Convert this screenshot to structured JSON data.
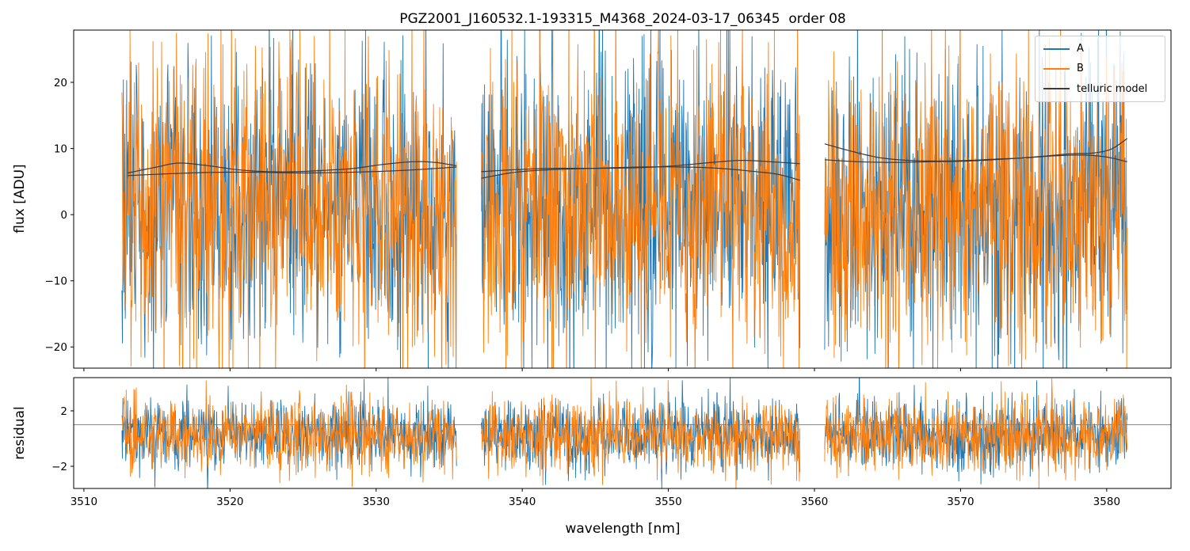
{
  "chart_data": [
    {
      "type": "line",
      "title": "PGZ2001_J160532.1-193315_M4368_2024-03-17_06345  order 08",
      "ylabel": "flux [ADU]",
      "xlim": [
        3509.3,
        3584.4
      ],
      "ylim": [
        -23.2,
        27.9
      ],
      "yticks": [
        -20,
        -10,
        0,
        10,
        20
      ],
      "xticks": [
        3510,
        3520,
        3530,
        3540,
        3550,
        3560,
        3570,
        3580
      ],
      "grid": false,
      "segments_nm": [
        [
          3512.6,
          3535.5
        ],
        [
          3537.2,
          3559.0
        ],
        [
          3560.7,
          3581.4
        ]
      ],
      "series": [
        {
          "name": "A",
          "role": "noise",
          "color": "#1f77b4",
          "mean": 2.0,
          "sigma": 11.0,
          "points_per_segment": 700
        },
        {
          "name": "B",
          "role": "noise",
          "color": "#ff7f0e",
          "mean": 1.5,
          "sigma": 11.6,
          "points_per_segment": 700
        },
        {
          "name": "telluric model",
          "role": "model",
          "color": "#3a3a3a",
          "curves": [
            {
              "segments": [
                [
                  [
                    3513.0,
                    6.3
                  ],
                  [
                    3515.0,
                    7.2
                  ],
                  [
                    3516.5,
                    7.8
                  ],
                  [
                    3518.5,
                    7.4
                  ],
                  [
                    3520.5,
                    6.8
                  ],
                  [
                    3522.5,
                    6.5
                  ],
                  [
                    3524.5,
                    6.5
                  ],
                  [
                    3526.5,
                    6.7
                  ],
                  [
                    3528.5,
                    7.0
                  ],
                  [
                    3530.5,
                    7.6
                  ],
                  [
                    3532.5,
                    8.0
                  ],
                  [
                    3534.0,
                    7.9
                  ],
                  [
                    3535.5,
                    7.4
                  ]
                ],
                [
                  [
                    3537.2,
                    6.5
                  ],
                  [
                    3539.5,
                    6.8
                  ],
                  [
                    3542.0,
                    7.0
                  ],
                  [
                    3545.0,
                    7.0
                  ],
                  [
                    3548.0,
                    7.1
                  ],
                  [
                    3550.5,
                    7.4
                  ],
                  [
                    3553.0,
                    7.9
                  ],
                  [
                    3555.0,
                    8.2
                  ],
                  [
                    3557.0,
                    8.0
                  ],
                  [
                    3559.0,
                    7.7
                  ]
                ],
                [
                  [
                    3560.7,
                    10.7
                  ],
                  [
                    3562.5,
                    9.6
                  ],
                  [
                    3564.5,
                    8.6
                  ],
                  [
                    3566.5,
                    8.2
                  ],
                  [
                    3568.5,
                    8.1
                  ],
                  [
                    3570.5,
                    8.2
                  ],
                  [
                    3572.5,
                    8.4
                  ],
                  [
                    3574.5,
                    8.6
                  ],
                  [
                    3576.5,
                    8.9
                  ],
                  [
                    3578.5,
                    9.0
                  ],
                  [
                    3580.0,
                    8.7
                  ],
                  [
                    3581.4,
                    8.0
                  ]
                ]
              ]
            },
            {
              "segments": [
                [
                  [
                    3513.0,
                    5.9
                  ],
                  [
                    3516.0,
                    6.2
                  ],
                  [
                    3519.0,
                    6.4
                  ],
                  [
                    3522.0,
                    6.4
                  ],
                  [
                    3525.0,
                    6.3
                  ],
                  [
                    3528.0,
                    6.4
                  ],
                  [
                    3531.0,
                    6.6
                  ],
                  [
                    3533.5,
                    6.9
                  ],
                  [
                    3535.5,
                    7.2
                  ]
                ],
                [
                  [
                    3537.2,
                    5.5
                  ],
                  [
                    3539.5,
                    6.4
                  ],
                  [
                    3542.0,
                    6.8
                  ],
                  [
                    3545.0,
                    7.0
                  ],
                  [
                    3548.0,
                    7.2
                  ],
                  [
                    3551.0,
                    7.2
                  ],
                  [
                    3553.5,
                    7.0
                  ],
                  [
                    3556.0,
                    6.5
                  ],
                  [
                    3557.5,
                    6.1
                  ],
                  [
                    3559.0,
                    5.2
                  ]
                ],
                [
                  [
                    3560.7,
                    8.3
                  ],
                  [
                    3563.0,
                    8.0
                  ],
                  [
                    3565.5,
                    7.9
                  ],
                  [
                    3568.0,
                    8.0
                  ],
                  [
                    3570.5,
                    8.1
                  ],
                  [
                    3573.0,
                    8.4
                  ],
                  [
                    3575.5,
                    8.8
                  ],
                  [
                    3577.5,
                    9.2
                  ],
                  [
                    3579.0,
                    9.3
                  ],
                  [
                    3580.3,
                    9.9
                  ],
                  [
                    3581.4,
                    11.5
                  ]
                ]
              ]
            }
          ]
        }
      ],
      "legend": {
        "position": "upper right",
        "entries": [
          {
            "label": "A",
            "color": "#1f77b4"
          },
          {
            "label": "B",
            "color": "#ff7f0e"
          },
          {
            "label": "telluric model",
            "color": "#3a3a3a"
          }
        ]
      }
    },
    {
      "type": "line",
      "ylabel": "residual",
      "xlabel": "wavelength [nm]",
      "ylim": [
        -3.6,
        4.4
      ],
      "yticks": [
        -2,
        2
      ],
      "hline_y": 1,
      "grid": false,
      "series": [
        {
          "name": "A",
          "role": "noise",
          "color": "#1f77b4",
          "mean": 0.3,
          "sigma": 1.25,
          "points_per_segment": 700
        },
        {
          "name": "B",
          "role": "noise",
          "color": "#ff7f0e",
          "mean": 0.25,
          "sigma": 1.35,
          "points_per_segment": 700
        }
      ]
    }
  ],
  "colors": {
    "series_a": "#1f77b4",
    "series_b": "#ff7f0e",
    "telluric": "#3a3a3a",
    "unity_line": "#8a8a8a",
    "spine": "#000000"
  }
}
